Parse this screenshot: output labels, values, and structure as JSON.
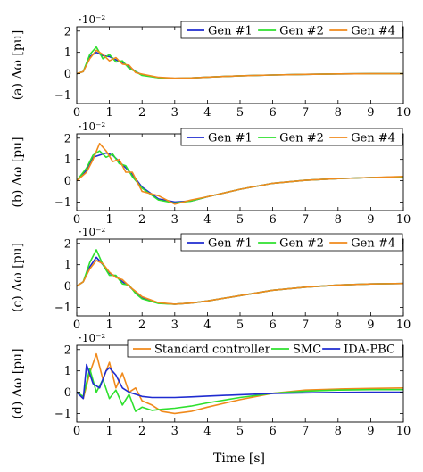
{
  "colors": {
    "blue": "#1f2bd0",
    "green": "#2ee02e",
    "orange": "#f08a1c"
  },
  "xlabel": "Time [s]",
  "chart_data": [
    {
      "type": "line",
      "ylabel": "(a) Δω [pu]",
      "exponent": "·10⁻²",
      "xlim": [
        0,
        10
      ],
      "ylim": [
        -1.4,
        2.2
      ],
      "xticks": [
        0,
        1,
        2,
        3,
        4,
        5,
        6,
        7,
        8,
        9,
        10
      ],
      "yticks": [
        -1,
        0,
        1,
        2
      ],
      "series": [
        {
          "name": "Gen #1",
          "color": "blue",
          "x": [
            0,
            0.2,
            0.4,
            0.6,
            0.8,
            1.0,
            1.2,
            1.4,
            1.6,
            1.8,
            2.0,
            2.5,
            3.0,
            3.5,
            4,
            5,
            6,
            7,
            8,
            9,
            10
          ],
          "y": [
            0,
            0.1,
            0.8,
            1.0,
            0.85,
            0.8,
            0.65,
            0.5,
            0.35,
            0.1,
            -0.05,
            -0.18,
            -0.22,
            -0.2,
            -0.16,
            -0.1,
            -0.06,
            -0.03,
            -0.01,
            0,
            0
          ]
        },
        {
          "name": "Gen #2",
          "color": "green",
          "x": [
            0,
            0.2,
            0.4,
            0.6,
            0.8,
            1.0,
            1.2,
            1.4,
            1.6,
            1.8,
            2.0,
            2.5,
            3.0,
            3.5,
            4,
            5,
            6,
            7,
            8,
            9,
            10
          ],
          "y": [
            0,
            0.1,
            0.9,
            1.25,
            0.7,
            0.9,
            0.55,
            0.6,
            0.25,
            0.1,
            -0.08,
            -0.19,
            -0.22,
            -0.2,
            -0.16,
            -0.1,
            -0.06,
            -0.03,
            -0.01,
            0,
            0
          ]
        },
        {
          "name": "Gen #4",
          "color": "orange",
          "x": [
            0,
            0.2,
            0.4,
            0.6,
            0.8,
            1.0,
            1.2,
            1.4,
            1.6,
            1.8,
            2.0,
            2.5,
            3.0,
            3.5,
            4,
            5,
            6,
            7,
            8,
            9,
            10
          ],
          "y": [
            0,
            0.1,
            0.7,
            1.1,
            0.9,
            0.6,
            0.75,
            0.45,
            0.4,
            0.05,
            -0.02,
            -0.17,
            -0.21,
            -0.2,
            -0.16,
            -0.1,
            -0.06,
            -0.03,
            -0.01,
            0,
            0
          ]
        }
      ]
    },
    {
      "type": "line",
      "ylabel": "(b) Δω [pu]",
      "exponent": "·10⁻²",
      "xlim": [
        0,
        10
      ],
      "ylim": [
        -1.4,
        2.2
      ],
      "xticks": [
        0,
        1,
        2,
        3,
        4,
        5,
        6,
        7,
        8,
        9,
        10
      ],
      "yticks": [
        -1,
        0,
        1,
        2
      ],
      "series": [
        {
          "name": "Gen #1",
          "color": "blue",
          "x": [
            0,
            0.3,
            0.5,
            0.7,
            0.9,
            1.1,
            1.3,
            1.5,
            1.7,
            2.0,
            2.5,
            3.0,
            3.5,
            4,
            5,
            6,
            7,
            8,
            9,
            10
          ],
          "y": [
            0,
            0.5,
            1.1,
            1.2,
            1.3,
            1.2,
            0.9,
            0.6,
            0.3,
            -0.3,
            -0.85,
            -1.0,
            -0.95,
            -0.75,
            -0.4,
            -0.12,
            0.02,
            0.1,
            0.15,
            0.18
          ]
        },
        {
          "name": "Gen #2",
          "color": "green",
          "x": [
            0,
            0.3,
            0.5,
            0.7,
            0.9,
            1.1,
            1.3,
            1.5,
            1.7,
            2.0,
            2.5,
            3.0,
            3.5,
            4,
            5,
            6,
            7,
            8,
            9,
            10
          ],
          "y": [
            0,
            0.6,
            1.2,
            1.4,
            1.1,
            1.25,
            0.8,
            0.7,
            0.2,
            -0.35,
            -0.9,
            -1.05,
            -0.95,
            -0.75,
            -0.4,
            -0.12,
            0.02,
            0.1,
            0.15,
            0.18
          ]
        },
        {
          "name": "Gen #4",
          "color": "orange",
          "x": [
            0,
            0.3,
            0.5,
            0.7,
            0.9,
            1.1,
            1.3,
            1.5,
            1.7,
            2.0,
            2.5,
            3.0,
            3.5,
            4,
            5,
            6,
            7,
            8,
            9,
            10
          ],
          "y": [
            0,
            0.4,
            1.0,
            1.75,
            1.4,
            0.9,
            1.0,
            0.4,
            0.4,
            -0.5,
            -0.7,
            -1.1,
            -0.9,
            -0.75,
            -0.4,
            -0.12,
            0.02,
            0.1,
            0.15,
            0.2
          ]
        }
      ]
    },
    {
      "type": "line",
      "ylabel": "(c) Δω [pu]",
      "exponent": "·10⁻²",
      "xlim": [
        0,
        10
      ],
      "ylim": [
        -1.4,
        2.2
      ],
      "xticks": [
        0,
        1,
        2,
        3,
        4,
        5,
        6,
        7,
        8,
        9,
        10
      ],
      "yticks": [
        -1,
        0,
        1,
        2
      ],
      "series": [
        {
          "name": "Gen #1",
          "color": "blue",
          "x": [
            0,
            0.2,
            0.4,
            0.6,
            0.8,
            1.0,
            1.2,
            1.4,
            1.6,
            1.8,
            2.0,
            2.5,
            3.0,
            3.5,
            4,
            5,
            6,
            7,
            8,
            9,
            10
          ],
          "y": [
            0,
            0.2,
            0.9,
            1.35,
            1.0,
            0.6,
            0.45,
            0.2,
            0.0,
            -0.3,
            -0.55,
            -0.8,
            -0.85,
            -0.8,
            -0.7,
            -0.45,
            -0.2,
            -0.05,
            0.05,
            0.1,
            0.12
          ]
        },
        {
          "name": "Gen #2",
          "color": "green",
          "x": [
            0,
            0.2,
            0.4,
            0.6,
            0.8,
            1.0,
            1.2,
            1.4,
            1.6,
            1.8,
            2.0,
            2.5,
            3.0,
            3.5,
            4,
            5,
            6,
            7,
            8,
            9,
            10
          ],
          "y": [
            0,
            0.2,
            1.1,
            1.7,
            1.0,
            0.5,
            0.5,
            0.1,
            0.05,
            -0.35,
            -0.6,
            -0.82,
            -0.85,
            -0.8,
            -0.7,
            -0.45,
            -0.2,
            -0.05,
            0.05,
            0.1,
            0.12
          ]
        },
        {
          "name": "Gen #4",
          "color": "orange",
          "x": [
            0,
            0.2,
            0.4,
            0.6,
            0.8,
            1.0,
            1.2,
            1.4,
            1.6,
            1.8,
            2.0,
            2.5,
            3.0,
            3.5,
            4,
            5,
            6,
            7,
            8,
            9,
            10
          ],
          "y": [
            0,
            0.2,
            0.8,
            1.2,
            1.05,
            0.65,
            0.4,
            0.3,
            0.0,
            -0.25,
            -0.5,
            -0.78,
            -0.85,
            -0.8,
            -0.7,
            -0.45,
            -0.2,
            -0.05,
            0.05,
            0.1,
            0.12
          ]
        }
      ]
    },
    {
      "type": "line",
      "ylabel": "(d) Δω [pu]",
      "exponent": "·10⁻²",
      "xlim": [
        0,
        10
      ],
      "ylim": [
        -1.4,
        2.2
      ],
      "xticks": [
        0,
        1,
        2,
        3,
        4,
        5,
        6,
        7,
        8,
        9,
        10
      ],
      "yticks": [
        -1,
        0,
        1,
        2
      ],
      "series": [
        {
          "name": "Standard controller",
          "color": "orange",
          "x": [
            0,
            0.2,
            0.4,
            0.6,
            0.8,
            1.0,
            1.2,
            1.4,
            1.6,
            1.8,
            2.0,
            2.3,
            2.6,
            3.0,
            3.5,
            4,
            5,
            6,
            7,
            8,
            9,
            10
          ],
          "y": [
            0,
            -0.3,
            0.9,
            1.8,
            0.6,
            1.4,
            0.2,
            0.9,
            0.0,
            0.2,
            -0.4,
            -0.6,
            -0.9,
            -1.0,
            -0.9,
            -0.7,
            -0.35,
            -0.05,
            0.1,
            0.15,
            0.18,
            0.2
          ]
        },
        {
          "name": "SMC",
          "color": "green",
          "x": [
            0,
            0.2,
            0.4,
            0.6,
            0.8,
            1.0,
            1.2,
            1.4,
            1.6,
            1.8,
            2.0,
            2.3,
            2.6,
            3.0,
            3.5,
            4,
            5,
            6,
            7,
            8,
            9,
            10
          ],
          "y": [
            0,
            -0.2,
            1.1,
            0.0,
            0.6,
            -0.3,
            0.1,
            -0.6,
            -0.1,
            -0.9,
            -0.7,
            -0.85,
            -0.8,
            -0.75,
            -0.65,
            -0.5,
            -0.25,
            -0.05,
            0.05,
            0.1,
            0.12,
            0.12
          ]
        },
        {
          "name": "IDA-PBC",
          "color": "blue",
          "x": [
            0,
            0.2,
            0.3,
            0.5,
            0.7,
            0.9,
            1.0,
            1.2,
            1.4,
            1.6,
            1.8,
            2.0,
            2.3,
            2.6,
            3.0,
            3.5,
            4,
            5,
            6,
            7,
            8,
            9,
            10
          ],
          "y": [
            0,
            -0.3,
            1.3,
            0.4,
            0.2,
            1.0,
            1.15,
            0.8,
            0.2,
            0.0,
            -0.1,
            -0.2,
            -0.25,
            -0.25,
            -0.25,
            -0.22,
            -0.18,
            -0.12,
            -0.06,
            -0.03,
            -0.01,
            0,
            0
          ]
        }
      ]
    }
  ]
}
